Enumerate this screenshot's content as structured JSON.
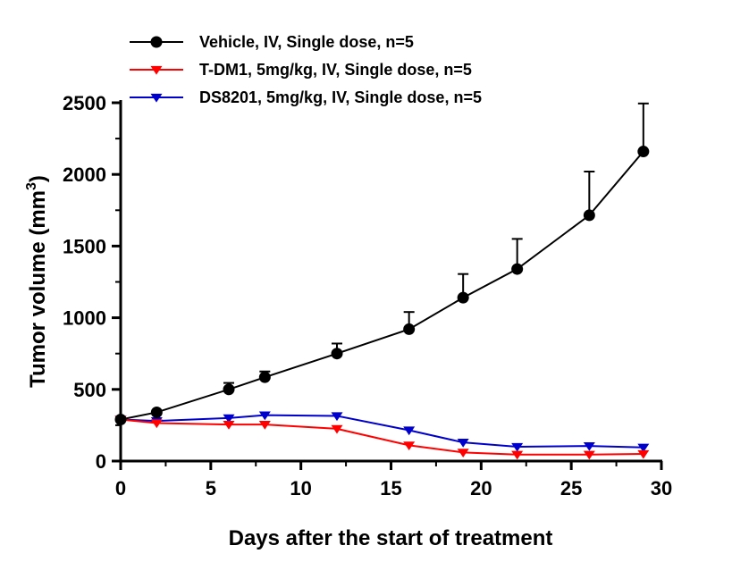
{
  "chart_data": {
    "type": "line",
    "xlabel": "Days after the start of treatment",
    "ylabel": "Tumor volume (mm",
    "ylabel_sup": "3",
    "ylabel_end": ")",
    "xlim": [
      0,
      30
    ],
    "ylim": [
      0,
      2500
    ],
    "xticks": [
      0,
      5,
      10,
      15,
      20,
      25,
      30
    ],
    "yticks": [
      0,
      500,
      1000,
      1500,
      2000,
      2500
    ],
    "legend_position": "top-left",
    "series": [
      {
        "name": "Vehicle, IV, Single dose, n=5",
        "color": "#000000",
        "marker": "circle",
        "x": [
          0,
          2,
          6,
          8,
          12,
          16,
          19,
          22,
          26,
          29
        ],
        "y": [
          290,
          340,
          500,
          585,
          750,
          920,
          1140,
          1340,
          1715,
          2160
        ],
        "err": [
          0,
          0,
          45,
          40,
          70,
          120,
          165,
          210,
          305,
          335
        ]
      },
      {
        "name": "T-DM1, 5mg/kg, IV, Single dose, n=5",
        "color": "#ff0000",
        "marker": "triangle-down",
        "x": [
          0,
          2,
          6,
          8,
          12,
          16,
          19,
          22,
          26,
          29
        ],
        "y": [
          290,
          265,
          255,
          255,
          225,
          110,
          60,
          45,
          45,
          50
        ],
        "err": []
      },
      {
        "name": "DS8201, 5mg/kg, IV, Single dose, n=5",
        "color": "#0000cc",
        "marker": "triangle-down",
        "x": [
          0,
          2,
          6,
          8,
          12,
          16,
          19,
          22,
          26,
          29
        ],
        "y": [
          290,
          280,
          300,
          320,
          315,
          215,
          130,
          100,
          105,
          95
        ],
        "err": []
      }
    ]
  }
}
